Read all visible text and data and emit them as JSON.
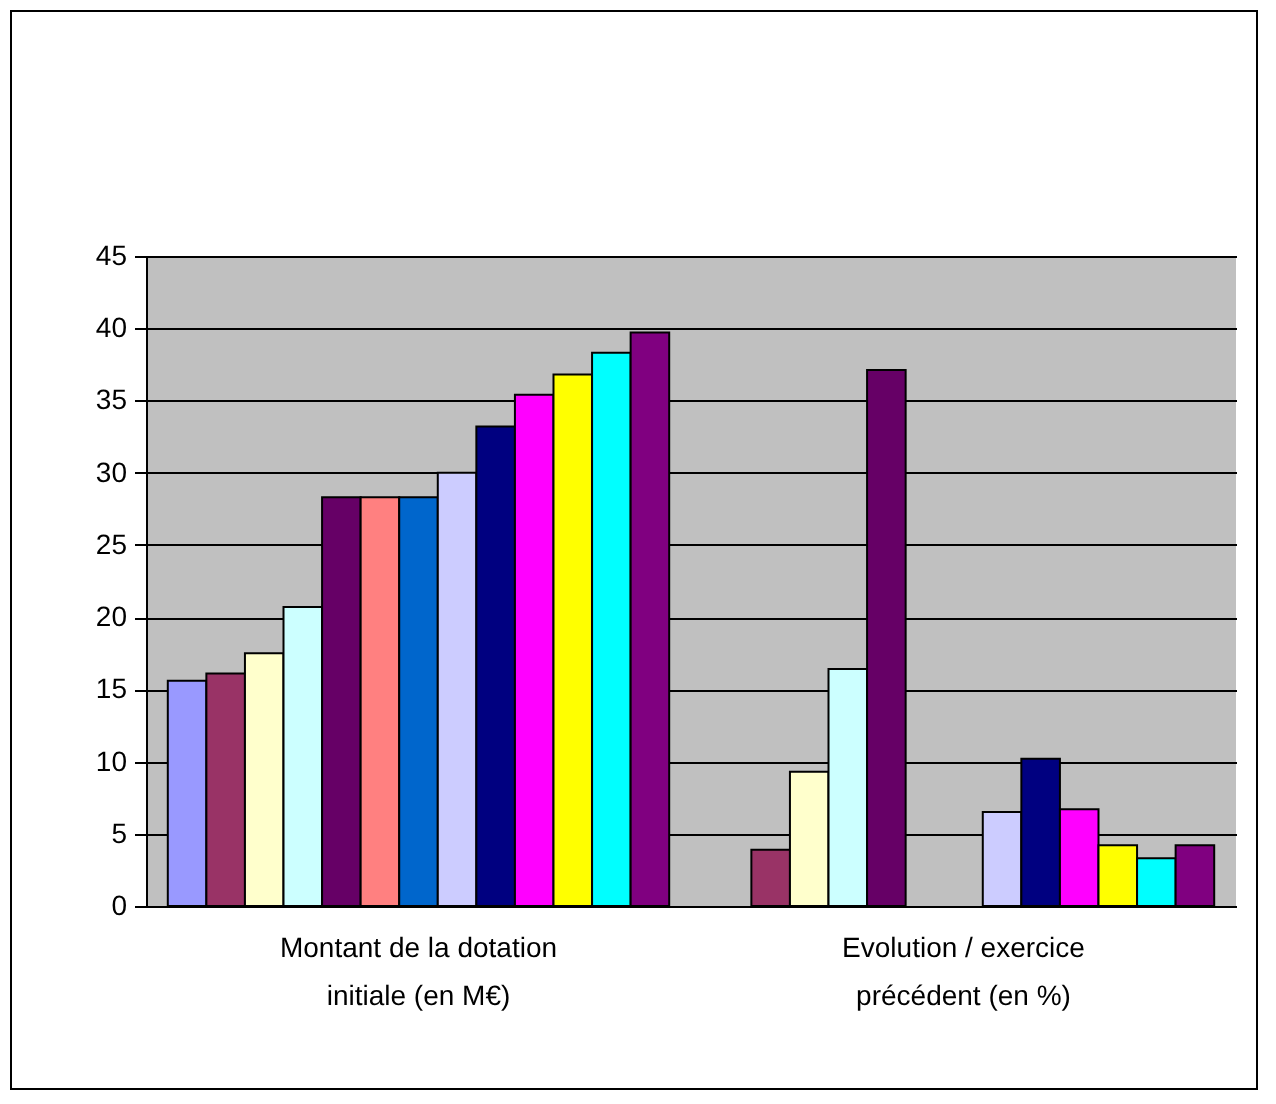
{
  "chart_data": {
    "type": "bar",
    "categories": [
      "Montant de la dotation initiale (en M€)",
      "Evolution / exercice précédent (en %)"
    ],
    "series": [
      {
        "color": "#9999ff",
        "values": [
          15.6,
          null
        ]
      },
      {
        "color": "#993366",
        "values": [
          16.1,
          3.9
        ]
      },
      {
        "color": "#ffffcc",
        "values": [
          17.5,
          9.3
        ]
      },
      {
        "color": "#ccffff",
        "values": [
          20.7,
          16.4
        ]
      },
      {
        "color": "#660066",
        "values": [
          28.3,
          37.1
        ]
      },
      {
        "color": "#ff8080",
        "values": [
          28.3,
          null
        ]
      },
      {
        "color": "#0066cc",
        "values": [
          28.3,
          null
        ]
      },
      {
        "color": "#ccccff",
        "values": [
          30.0,
          6.5
        ]
      },
      {
        "color": "#000080",
        "values": [
          33.2,
          10.2
        ]
      },
      {
        "color": "#ff00ff",
        "values": [
          35.4,
          6.7
        ]
      },
      {
        "color": "#ffff00",
        "values": [
          36.8,
          4.2
        ]
      },
      {
        "color": "#00ffff",
        "values": [
          38.3,
          3.3
        ]
      },
      {
        "color": "#800080",
        "values": [
          39.7,
          4.2
        ]
      }
    ],
    "ylim": [
      0,
      45
    ],
    "yticks": [
      0,
      5,
      10,
      15,
      20,
      25,
      30,
      35,
      40,
      45
    ],
    "grid": "y",
    "legend": false
  }
}
